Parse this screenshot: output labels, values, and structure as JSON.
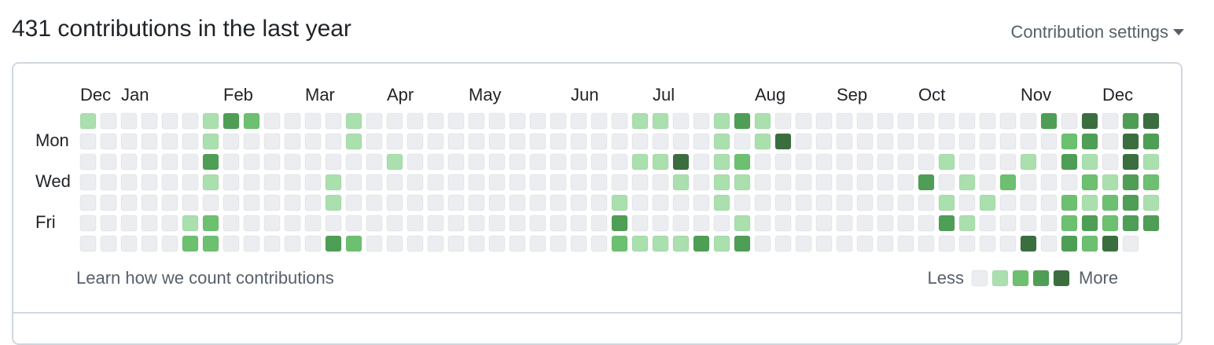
{
  "header": {
    "title": "431 contributions in the last year",
    "settings": "Contribution settings"
  },
  "graph": {
    "months": [
      {
        "label": "Dec",
        "week": 0
      },
      {
        "label": "Jan",
        "week": 2
      },
      {
        "label": "Feb",
        "week": 7
      },
      {
        "label": "Mar",
        "week": 11
      },
      {
        "label": "Apr",
        "week": 15
      },
      {
        "label": "May",
        "week": 19
      },
      {
        "label": "Jun",
        "week": 24
      },
      {
        "label": "Jul",
        "week": 28
      },
      {
        "label": "Aug",
        "week": 33
      },
      {
        "label": "Sep",
        "week": 37
      },
      {
        "label": "Oct",
        "week": 41
      },
      {
        "label": "Nov",
        "week": 46
      },
      {
        "label": "Dec",
        "week": 50
      }
    ],
    "days": [
      {
        "label": "Mon",
        "row": 1
      },
      {
        "label": "Wed",
        "row": 3
      },
      {
        "label": "Fri",
        "row": 5
      }
    ],
    "colors": [
      "#ebedf0",
      "#aadfae",
      "#6cc070",
      "#4f9e55",
      "#3b6e3f"
    ],
    "rows": [
      [
        1,
        0,
        0,
        0,
        0,
        0,
        1,
        3,
        2,
        0,
        0,
        0,
        0,
        1,
        0,
        0,
        0,
        0,
        0,
        0,
        0,
        0,
        0,
        0,
        0,
        0,
        0,
        1,
        1,
        0,
        0,
        1,
        3,
        1,
        0,
        0,
        0,
        0,
        0,
        0,
        0,
        0,
        0,
        0,
        0,
        0,
        0,
        3,
        0,
        4,
        0,
        3,
        4
      ],
      [
        0,
        0,
        0,
        0,
        0,
        0,
        1,
        0,
        0,
        0,
        0,
        0,
        0,
        1,
        0,
        0,
        0,
        0,
        0,
        0,
        0,
        0,
        0,
        0,
        0,
        0,
        0,
        0,
        0,
        0,
        0,
        1,
        0,
        1,
        4,
        0,
        0,
        0,
        0,
        0,
        0,
        0,
        0,
        0,
        0,
        0,
        0,
        0,
        2,
        3,
        0,
        4,
        3
      ],
      [
        0,
        0,
        0,
        0,
        0,
        0,
        3,
        0,
        0,
        0,
        0,
        0,
        0,
        0,
        0,
        1,
        0,
        0,
        0,
        0,
        0,
        0,
        0,
        0,
        0,
        0,
        0,
        1,
        1,
        4,
        0,
        1,
        2,
        0,
        0,
        0,
        0,
        0,
        0,
        0,
        0,
        0,
        1,
        0,
        0,
        0,
        1,
        0,
        3,
        1,
        0,
        4,
        1
      ],
      [
        0,
        0,
        0,
        0,
        0,
        0,
        1,
        0,
        0,
        0,
        0,
        0,
        1,
        0,
        0,
        0,
        0,
        0,
        0,
        0,
        0,
        0,
        0,
        0,
        0,
        0,
        0,
        0,
        0,
        1,
        0,
        1,
        1,
        0,
        0,
        0,
        0,
        0,
        0,
        0,
        0,
        3,
        0,
        1,
        0,
        2,
        0,
        0,
        0,
        2,
        1,
        3,
        2
      ],
      [
        0,
        0,
        0,
        0,
        0,
        0,
        0,
        0,
        0,
        0,
        0,
        0,
        1,
        0,
        0,
        0,
        0,
        0,
        0,
        0,
        0,
        0,
        0,
        0,
        0,
        0,
        1,
        0,
        0,
        0,
        0,
        1,
        0,
        0,
        0,
        0,
        0,
        0,
        0,
        0,
        0,
        0,
        1,
        0,
        1,
        0,
        0,
        0,
        2,
        1,
        2,
        3,
        1
      ],
      [
        0,
        0,
        0,
        0,
        0,
        1,
        2,
        0,
        0,
        0,
        0,
        0,
        0,
        0,
        0,
        0,
        0,
        0,
        0,
        0,
        0,
        0,
        0,
        0,
        0,
        0,
        3,
        0,
        0,
        0,
        0,
        0,
        1,
        0,
        0,
        0,
        0,
        0,
        0,
        0,
        0,
        0,
        3,
        1,
        0,
        0,
        0,
        0,
        2,
        3,
        2,
        3,
        3
      ],
      [
        0,
        0,
        0,
        0,
        0,
        2,
        2,
        0,
        0,
        0,
        0,
        0,
        3,
        2,
        0,
        0,
        0,
        0,
        0,
        0,
        0,
        0,
        0,
        0,
        0,
        0,
        2,
        1,
        1,
        1,
        3,
        1,
        3,
        0,
        0,
        0,
        0,
        0,
        0,
        0,
        0,
        0,
        0,
        0,
        0,
        0,
        4,
        0,
        3,
        2,
        4,
        0
      ]
    ]
  },
  "footer": {
    "learn": "Learn how we count contributions",
    "less": "Less",
    "more": "More"
  }
}
